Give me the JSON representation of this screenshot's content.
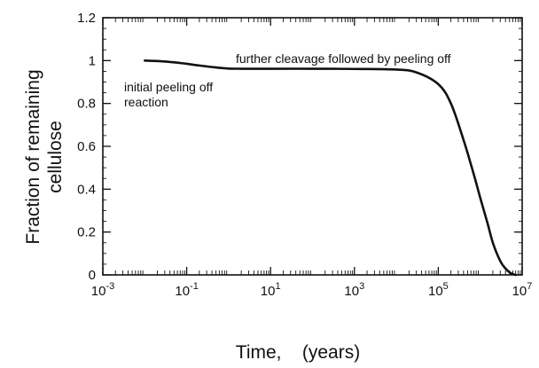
{
  "chart_data": {
    "type": "line",
    "title": "",
    "xlabel": "Time,    (years)",
    "ylabel_lines": [
      "Fraction of remaining",
      "cellulose"
    ],
    "x_scale": "log",
    "xlim": [
      0.001,
      10000000
    ],
    "ylim": [
      0,
      1.2
    ],
    "grid": false,
    "x_ticks": [
      {
        "value": 0.001,
        "base": "10",
        "exp": "-3"
      },
      {
        "value": 0.1,
        "base": "10",
        "exp": "-1"
      },
      {
        "value": 10,
        "base": "10",
        "exp": "1"
      },
      {
        "value": 1000,
        "base": "10",
        "exp": "3"
      },
      {
        "value": 100000,
        "base": "10",
        "exp": "5"
      },
      {
        "value": 10000000,
        "base": "10",
        "exp": "7"
      }
    ],
    "y_ticks": [
      {
        "value": 0,
        "label": "0"
      },
      {
        "value": 0.2,
        "label": "0.2"
      },
      {
        "value": 0.4,
        "label": "0.4"
      },
      {
        "value": 0.6,
        "label": "0.6"
      },
      {
        "value": 0.8,
        "label": "0.8"
      },
      {
        "value": 1.0,
        "label": "1"
      },
      {
        "value": 1.2,
        "label": "1.2"
      }
    ],
    "series": [
      {
        "x": [
          0.01,
          0.02,
          0.05,
          0.1,
          0.2,
          0.5,
          1,
          2,
          5,
          10,
          100,
          1000,
          10000,
          30000,
          100000,
          200000,
          400000,
          700000,
          1000000,
          1500000,
          2000000,
          3000000,
          4000000,
          5000000,
          6000000,
          7000000
        ],
        "y": [
          1.0,
          0.998,
          0.992,
          0.985,
          0.977,
          0.968,
          0.963,
          0.962,
          0.962,
          0.962,
          0.962,
          0.961,
          0.958,
          0.945,
          0.89,
          0.8,
          0.63,
          0.47,
          0.36,
          0.24,
          0.15,
          0.065,
          0.03,
          0.012,
          0.004,
          0.0
        ]
      }
    ],
    "annotations": [
      {
        "lines": [
          "further cleavage followed by peeling off"
        ]
      },
      {
        "lines": [
          "initial peeling off",
          "reaction"
        ]
      }
    ]
  }
}
